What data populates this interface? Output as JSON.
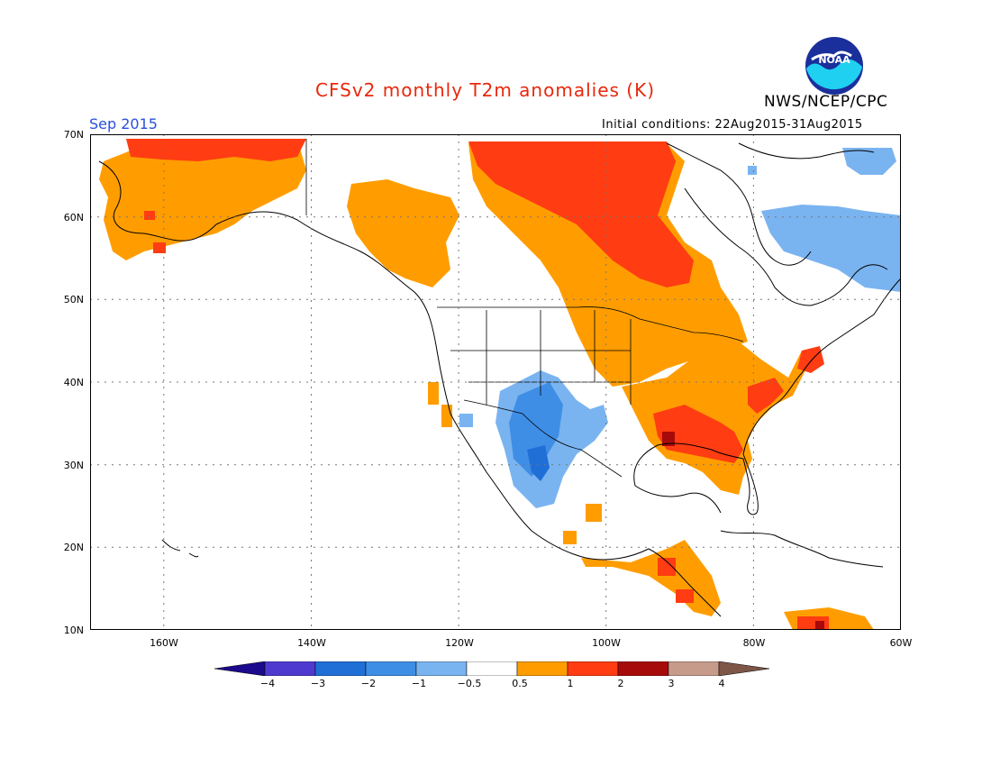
{
  "header": {
    "title": "CFSv2 monthly T2m anomalies (K)",
    "period": "Sep 2015",
    "initial_conditions": "Initial conditions: 22Aug2015-31Aug2015",
    "agency": "NWS/NCEP/CPC",
    "logo_text": "NOAA"
  },
  "axes": {
    "lat_labels": [
      "70N",
      "60N",
      "50N",
      "40N",
      "30N",
      "20N",
      "10N"
    ],
    "lon_labels": [
      "160W",
      "140W",
      "120W",
      "100W",
      "80W",
      "60W"
    ]
  },
  "legend": {
    "ticks": [
      "−4",
      "−3",
      "−2",
      "−1",
      "−0.5",
      "0.5",
      "1",
      "2",
      "3",
      "4"
    ],
    "colors": [
      "#1c0a8c",
      "#4f3ad0",
      "#1f6fd6",
      "#3f8ee6",
      "#7ab4f0",
      "#ffffff",
      "#ff9d00",
      "#ff3c12",
      "#a70a0a",
      "#c79b8a",
      "#7d5648"
    ]
  },
  "map_data": {
    "region": "North America",
    "lon_range": [
      -170,
      -60
    ],
    "lat_range": [
      10,
      70
    ],
    "anomaly_colors": {
      "very_warm": "#a70a0a",
      "warm2": "#ff3c12",
      "warm1": "#ff9d00",
      "cool1": "#7ab4f0",
      "cool2": "#3f8ee6",
      "cool3": "#1f6fd6"
    }
  }
}
